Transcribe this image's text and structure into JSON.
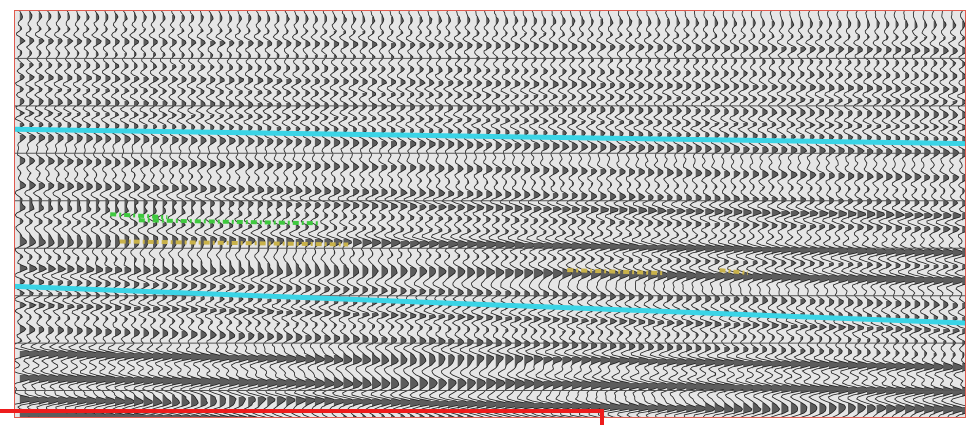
{
  "colors": {
    "background": "#e6e6e6",
    "trace_fill": "#5c5c5c",
    "trace_line": "#1e1e1e",
    "grid": "#555555",
    "horizon": "#3ad4e6",
    "pick_green": "#3ec93e",
    "pick_yellow": "#c9b24a",
    "panel_border": "#e05a4e",
    "selection_frame": "#ee1c1c"
  },
  "section": {
    "trace_count": 100,
    "time_lines": 8
  },
  "horizons": [
    {
      "id": "upper-horizon",
      "left_level": 0.29,
      "right_level": 0.325
    },
    {
      "id": "lower-horizon",
      "left_level": 0.675,
      "right_level": 0.765
    }
  ],
  "picks": [
    {
      "id": "green-pick-a",
      "color": "green",
      "from": 0.1,
      "to": 0.16,
      "level": 0.498
    },
    {
      "id": "green-pick-b",
      "color": "green",
      "from": 0.13,
      "to": 0.32,
      "level": 0.513
    },
    {
      "id": "yellow-pick-a",
      "color": "yellow",
      "from": 0.11,
      "to": 0.35,
      "level": 0.565
    },
    {
      "id": "yellow-pick-b",
      "color": "yellow",
      "from": 0.58,
      "to": 0.68,
      "level": 0.635
    },
    {
      "id": "yellow-pick-c",
      "color": "yellow",
      "from": 0.74,
      "to": 0.77,
      "level": 0.635
    }
  ]
}
